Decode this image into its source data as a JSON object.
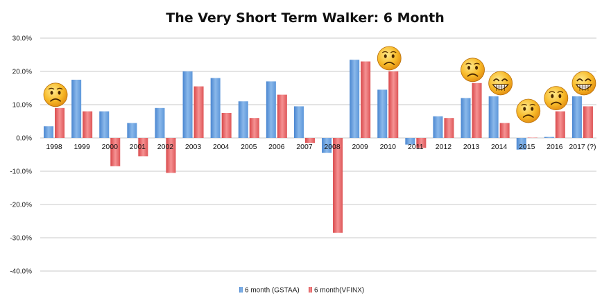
{
  "chart_data": {
    "type": "bar",
    "title": "The Very Short Term Walker: 6 Month",
    "xlabel": "",
    "ylabel": "",
    "ylim": [
      -40,
      30
    ],
    "yticks": [
      "30.0%",
      "20.0%",
      "10.0%",
      "0.0%",
      "-10.0%",
      "-20.0%",
      "-30.0%",
      "-40.0%"
    ],
    "ytick_values": [
      30,
      20,
      10,
      0,
      -10,
      -20,
      -30,
      -40
    ],
    "grid": true,
    "legend_position": "bottom",
    "categories": [
      "1998",
      "1999",
      "2000",
      "2001",
      "2002",
      "2003",
      "2004",
      "2005",
      "2006",
      "2007",
      "2008",
      "2009",
      "2010",
      "2011",
      "2012",
      "2013",
      "2014",
      "2015",
      "2016",
      "2017 (?)"
    ],
    "series": [
      {
        "name": "6 month (GSTAA)",
        "color": "#5b9bd5",
        "values": [
          3.5,
          17.5,
          8.0,
          4.5,
          9.0,
          20.0,
          18.0,
          11.0,
          17.0,
          9.5,
          -4.5,
          23.5,
          14.5,
          -2.0,
          6.5,
          12.0,
          12.5,
          -3.5,
          0.3,
          12.5
        ]
      },
      {
        "name": "6 month(VFINX)",
        "color": "#e85c5c",
        "values": [
          9.0,
          8.0,
          -8.5,
          -5.5,
          -10.5,
          15.5,
          7.5,
          6.0,
          13.0,
          -1.5,
          -28.5,
          23.0,
          20.0,
          -3.0,
          6.0,
          16.5,
          4.5,
          0.1,
          8.0,
          9.5
        ]
      }
    ],
    "annotations": [
      {
        "category": "1998",
        "icon": "sad-face-icon"
      },
      {
        "category": "2010",
        "icon": "sad-face-icon"
      },
      {
        "category": "2013",
        "icon": "sad-face-icon"
      },
      {
        "category": "2014",
        "icon": "grin-face-icon"
      },
      {
        "category": "2015",
        "icon": "sad-face-icon"
      },
      {
        "category": "2016",
        "icon": "sad-face-icon"
      },
      {
        "category": "2017 (?)",
        "icon": "grin-face-icon"
      }
    ]
  }
}
